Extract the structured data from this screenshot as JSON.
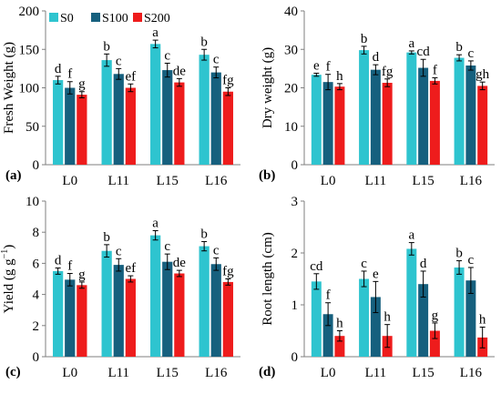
{
  "colors": {
    "S0": "#2ec4cf",
    "S100": "#16607e",
    "S200": "#ee1c1c",
    "axis": "#7f7f7f"
  },
  "chart_data": [
    {
      "type": "bar",
      "panel_label": "(a)",
      "ylabel": "Fresh Weight (g)",
      "ylim": [
        0,
        200
      ],
      "yticks": [
        0,
        50,
        100,
        150,
        200
      ],
      "categories": [
        "L0",
        "L11",
        "L15",
        "L16"
      ],
      "legend": {
        "placement": "top-left",
        "entries": [
          "S0",
          "S100",
          "S200"
        ]
      },
      "series": [
        {
          "name": "S0",
          "values": [
            110,
            136,
            157,
            143
          ],
          "errors": [
            5,
            8,
            5,
            7
          ],
          "letters": [
            "d",
            "b",
            "a",
            "b"
          ]
        },
        {
          "name": "S100",
          "values": [
            100,
            118,
            123,
            120
          ],
          "errors": [
            8,
            7,
            9,
            7
          ],
          "letters": [
            "f",
            "c",
            "c",
            "c"
          ]
        },
        {
          "name": "S200",
          "values": [
            91,
            100,
            107,
            95
          ],
          "errors": [
            4,
            5,
            5,
            5
          ],
          "letters": [
            "g",
            "ef",
            "de",
            "fg"
          ]
        }
      ]
    },
    {
      "type": "bar",
      "panel_label": "(b)",
      "ylabel": "Dry weight (g)",
      "ylim": [
        0,
        40
      ],
      "yticks": [
        0,
        10,
        20,
        30,
        40
      ],
      "categories": [
        "L0",
        "L11",
        "L15",
        "L16"
      ],
      "series": [
        {
          "name": "S0",
          "values": [
            23.4,
            29.8,
            29.2,
            27.8
          ],
          "errors": [
            0.4,
            1.0,
            0.4,
            0.8
          ],
          "letters": [
            "e",
            "b",
            "a",
            "b"
          ]
        },
        {
          "name": "S100",
          "values": [
            21.5,
            24.7,
            25.2,
            25.8
          ],
          "errors": [
            2.0,
            1.3,
            2.2,
            1.2
          ],
          "letters": [
            "f",
            "d",
            "cd",
            "c"
          ]
        },
        {
          "name": "S200",
          "values": [
            20.3,
            21.3,
            21.8,
            20.5
          ],
          "errors": [
            0.8,
            1.0,
            0.8,
            1.0
          ],
          "letters": [
            "h",
            "fg",
            "f",
            "gh"
          ]
        }
      ]
    },
    {
      "type": "bar",
      "panel_label": "(c)",
      "ylabel": "Yield (g g",
      "ylabel_sup": "−1",
      "ylabel_end": ")",
      "ylim": [
        0,
        10
      ],
      "yticks": [
        0,
        2,
        4,
        6,
        8,
        10
      ],
      "categories": [
        "L0",
        "L11",
        "L15",
        "L16"
      ],
      "series": [
        {
          "name": "S0",
          "values": [
            5.5,
            6.8,
            7.8,
            7.1
          ],
          "errors": [
            0.2,
            0.4,
            0.3,
            0.3
          ],
          "letters": [
            "d",
            "b",
            "a",
            "b"
          ]
        },
        {
          "name": "S100",
          "values": [
            4.95,
            5.9,
            6.1,
            5.95
          ],
          "errors": [
            0.4,
            0.4,
            0.5,
            0.4
          ],
          "letters": [
            "f",
            "c",
            "c",
            "c"
          ]
        },
        {
          "name": "S200",
          "values": [
            4.6,
            5.0,
            5.35,
            4.8
          ],
          "errors": [
            0.2,
            0.2,
            0.2,
            0.2
          ],
          "letters": [
            "g",
            "ef",
            "de",
            "fg"
          ]
        }
      ]
    },
    {
      "type": "bar",
      "panel_label": "(d)",
      "ylabel": "Root length (cm)",
      "ylim": [
        0,
        3
      ],
      "yticks": [
        0,
        1,
        2,
        3
      ],
      "categories": [
        "L0",
        "L11",
        "L15",
        "L16"
      ],
      "series": [
        {
          "name": "S0",
          "values": [
            1.45,
            1.5,
            2.08,
            1.72
          ],
          "errors": [
            0.15,
            0.15,
            0.12,
            0.13
          ],
          "letters": [
            "cd",
            "c",
            "a",
            "b"
          ]
        },
        {
          "name": "S100",
          "values": [
            0.82,
            1.15,
            1.4,
            1.47
          ],
          "errors": [
            0.22,
            0.3,
            0.25,
            0.25
          ],
          "letters": [
            "f",
            "e",
            "d",
            "c"
          ]
        },
        {
          "name": "S200",
          "values": [
            0.4,
            0.4,
            0.5,
            0.37
          ],
          "errors": [
            0.1,
            0.22,
            0.15,
            0.2
          ],
          "letters": [
            "h",
            "h",
            "g",
            "h"
          ]
        }
      ]
    }
  ]
}
